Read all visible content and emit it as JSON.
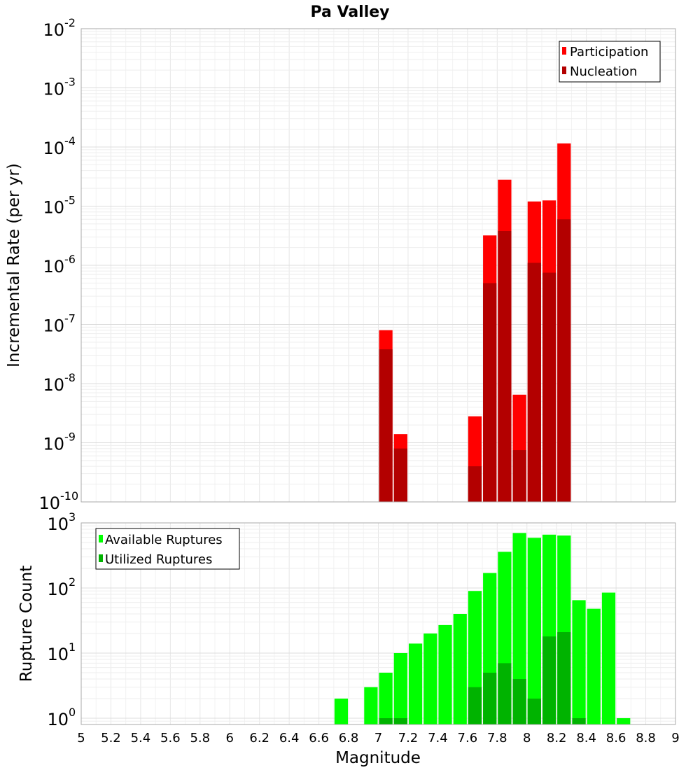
{
  "chart_data": [
    {
      "type": "bar",
      "title": "Pa Valley",
      "xlabel": "",
      "ylabel": "Incremental Rate (per yr)",
      "yscale": "log",
      "ylim": [
        1e-10,
        0.01
      ],
      "xlim": [
        5,
        9
      ],
      "legend": "top-right",
      "grid": true,
      "series": [
        {
          "name": "Participation",
          "color": "#ff0000",
          "x": [
            7.05,
            7.15,
            7.65,
            7.75,
            7.85,
            7.95,
            8.05,
            8.15,
            8.25
          ],
          "values": [
            8e-08,
            1.4e-09,
            2.8e-09,
            3.2e-06,
            2.8e-05,
            6.5e-09,
            1.2e-05,
            1.25e-05,
            0.000115
          ]
        },
        {
          "name": "Nucleation",
          "color": "#b30000",
          "x": [
            7.05,
            7.15,
            7.65,
            7.75,
            7.85,
            7.95,
            8.05,
            8.15,
            8.25
          ],
          "values": [
            3.8e-08,
            8e-10,
            4e-10,
            5e-07,
            3.8e-06,
            7.5e-10,
            1.1e-06,
            7.5e-07,
            6e-06
          ]
        }
      ],
      "y_ticks": [
        {
          "base": "10",
          "exp": "-2"
        },
        {
          "base": "10",
          "exp": "-3"
        },
        {
          "base": "10",
          "exp": "-4"
        },
        {
          "base": "10",
          "exp": "-5"
        },
        {
          "base": "10",
          "exp": "-6"
        },
        {
          "base": "10",
          "exp": "-7"
        },
        {
          "base": "10",
          "exp": "-8"
        },
        {
          "base": "10",
          "exp": "-9"
        },
        {
          "base": "10",
          "exp": "-10"
        }
      ]
    },
    {
      "type": "bar",
      "title": "",
      "xlabel": "Magnitude",
      "ylabel": "Rupture Count",
      "yscale": "log",
      "ylim": [
        0.8,
        1000
      ],
      "xlim": [
        5,
        9
      ],
      "legend": "top-left",
      "grid": true,
      "series": [
        {
          "name": "Available Ruptures",
          "color": "#00ff00",
          "x": [
            6.75,
            6.95,
            7.05,
            7.15,
            7.25,
            7.35,
            7.45,
            7.55,
            7.65,
            7.75,
            7.85,
            7.95,
            8.05,
            8.15,
            8.25,
            8.35,
            8.45,
            8.55,
            8.65
          ],
          "values": [
            2,
            3,
            5,
            10,
            14,
            20,
            27,
            40,
            90,
            170,
            360,
            700,
            590,
            660,
            640,
            65,
            48,
            85,
            1
          ]
        },
        {
          "name": "Utilized Ruptures",
          "color": "#00b300",
          "x": [
            7.05,
            7.15,
            7.65,
            7.75,
            7.85,
            7.95,
            8.05,
            8.15,
            8.25,
            8.35
          ],
          "values": [
            1,
            1,
            3,
            5,
            7,
            4,
            2,
            18,
            21,
            1
          ]
        }
      ],
      "y_ticks": [
        {
          "base": "10",
          "exp": "3"
        },
        {
          "base": "10",
          "exp": "2"
        },
        {
          "base": "10",
          "exp": "1"
        },
        {
          "base": "10",
          "exp": "0"
        }
      ],
      "x_ticks": [
        "5",
        "5.2",
        "5.4",
        "5.6",
        "5.8",
        "6",
        "6.2",
        "6.4",
        "6.6",
        "6.8",
        "7",
        "7.2",
        "7.4",
        "7.6",
        "7.8",
        "8",
        "8.2",
        "8.4",
        "8.6",
        "8.8",
        "9"
      ]
    }
  ]
}
